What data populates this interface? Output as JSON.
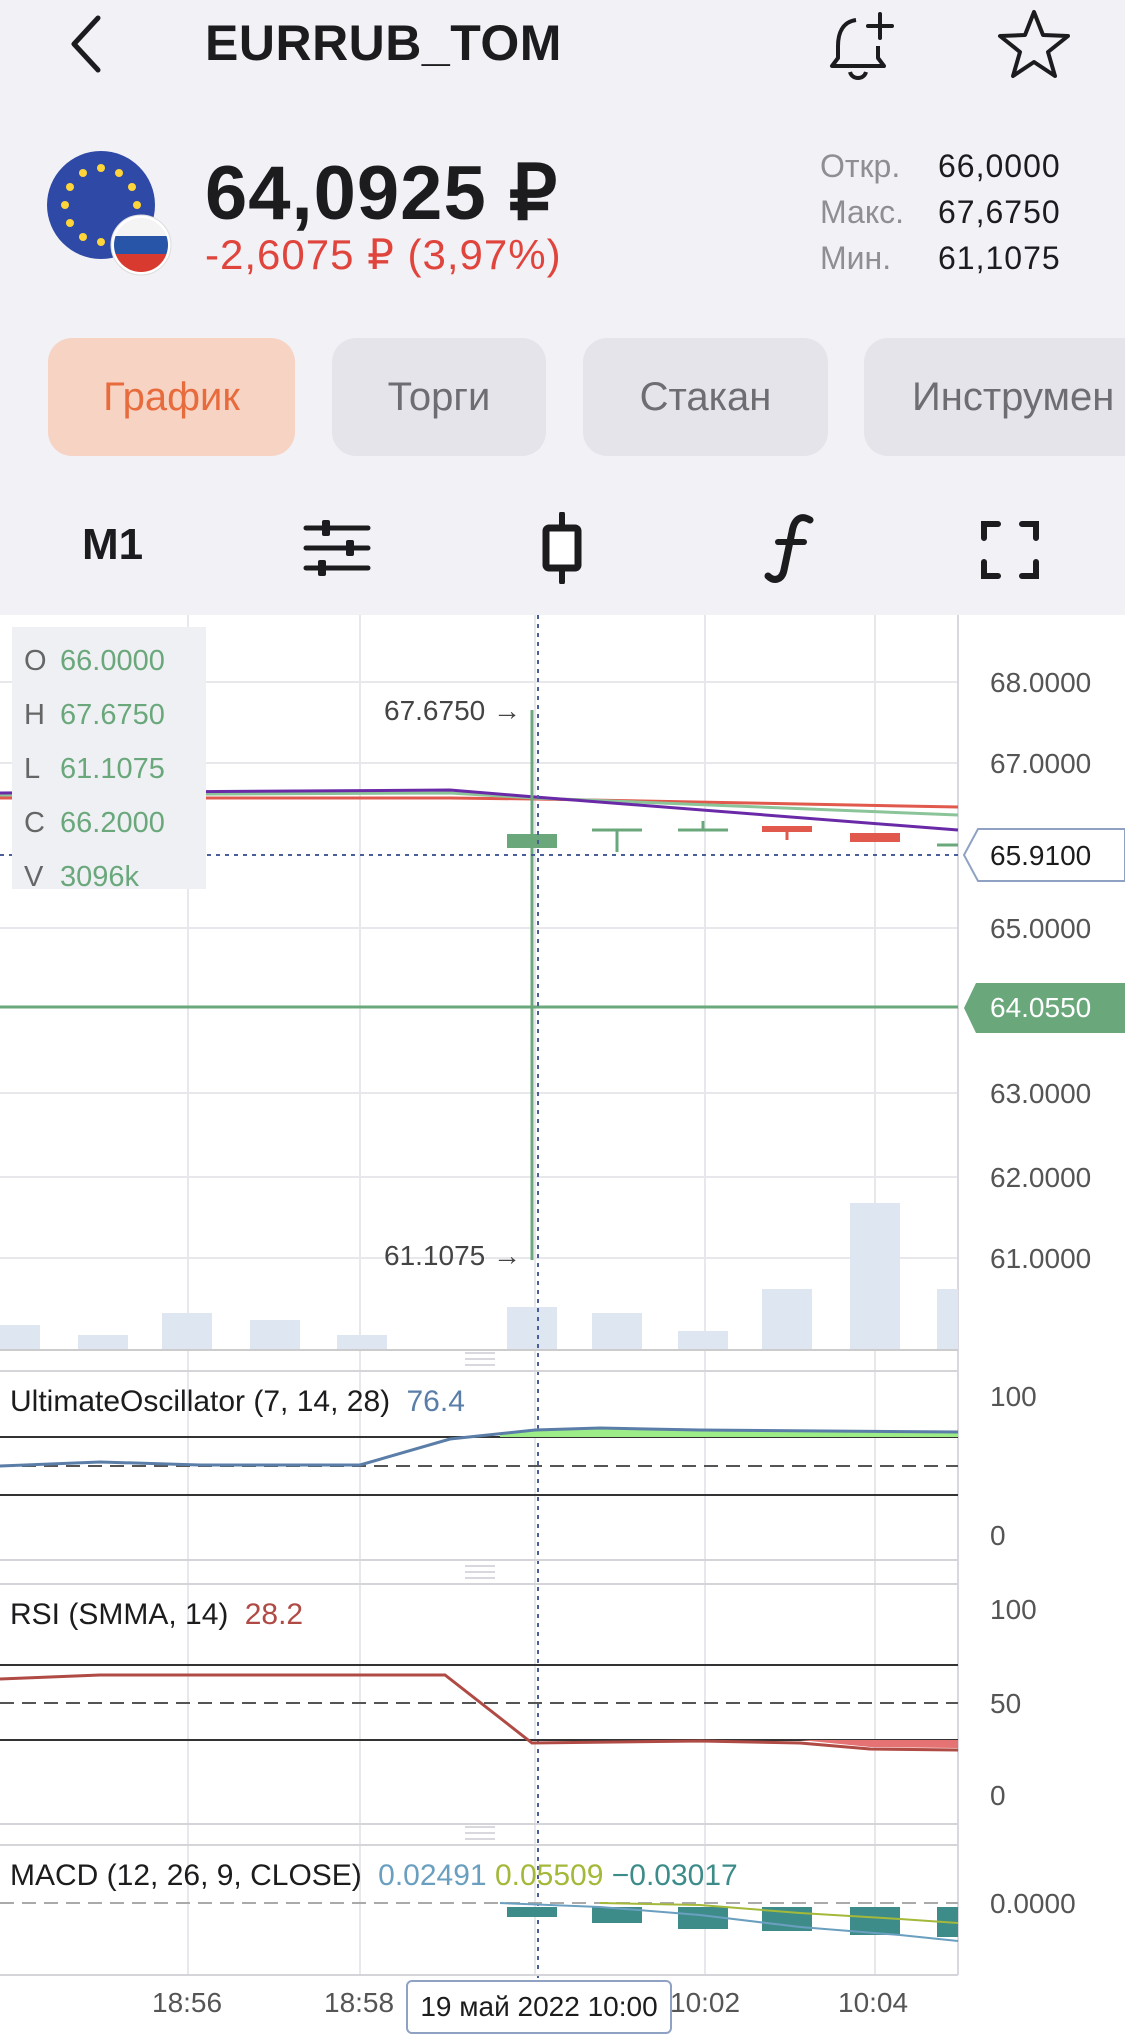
{
  "header": {
    "title": "EURRUB_TOM",
    "back_icon": "chevron-left-icon",
    "alert_icon": "bell-plus-icon",
    "favorite_icon": "star-outline-icon"
  },
  "quote": {
    "price": "64,0925 ₽",
    "change": "-2,6075 ₽ (3,97%)",
    "change_color": "#e0453d",
    "flag_icon": "eu-rub-flag-icon",
    "stats": [
      {
        "label": "Откр.",
        "value": "66,0000"
      },
      {
        "label": "Макс.",
        "value": "67,6750"
      },
      {
        "label": "Мин.",
        "value": "61,1075"
      }
    ]
  },
  "tabs": [
    {
      "label": "График",
      "active": true
    },
    {
      "label": "Торги",
      "active": false
    },
    {
      "label": "Стакан",
      "active": false
    },
    {
      "label": "Инструмен",
      "active": false
    }
  ],
  "toolbar": {
    "timeframe": "M1",
    "settings_icon": "sliders-icon",
    "candle_icon": "candlestick-icon",
    "indicator_icon": "function-icon",
    "fullscreen_icon": "fullscreen-icon"
  },
  "chart": {
    "ohlcv": [
      {
        "k": "O",
        "v": "66.0000"
      },
      {
        "k": "H",
        "v": "67.6750"
      },
      {
        "k": "L",
        "v": "61.1075"
      },
      {
        "k": "C",
        "v": "66.2000"
      },
      {
        "k": "V",
        "v": "3096k"
      }
    ],
    "high_marker": "67.6750 →",
    "low_marker": "61.1075 →",
    "price_ticks": [
      "68.0000",
      "67.0000",
      "65.0000",
      "63.0000",
      "62.0000",
      "61.0000"
    ],
    "crosshair_price": "65.9100",
    "last_price": "64.0550",
    "accent_green": "#6aa87c",
    "accent_red": "#e0453d",
    "time_ticks": [
      "18:56",
      "18:58",
      "10:02",
      "10:04"
    ],
    "crosshair_time": "19 май 2022 10:00"
  },
  "indicators": {
    "uo": {
      "name": "UltimateOscillator (7, 14, 28)",
      "value": "76.4",
      "ticks": [
        "100",
        "0"
      ]
    },
    "rsi": {
      "name": "RSI (SMMA, 14)",
      "value": "28.2",
      "ticks": [
        "100",
        "50",
        "0"
      ]
    },
    "macd": {
      "name": "MACD (12, 26, 9, CLOSE)",
      "v1": "0.02491",
      "v2": "0.05509",
      "v3": "−0.03017",
      "ticks": [
        "0.0000"
      ]
    }
  }
}
